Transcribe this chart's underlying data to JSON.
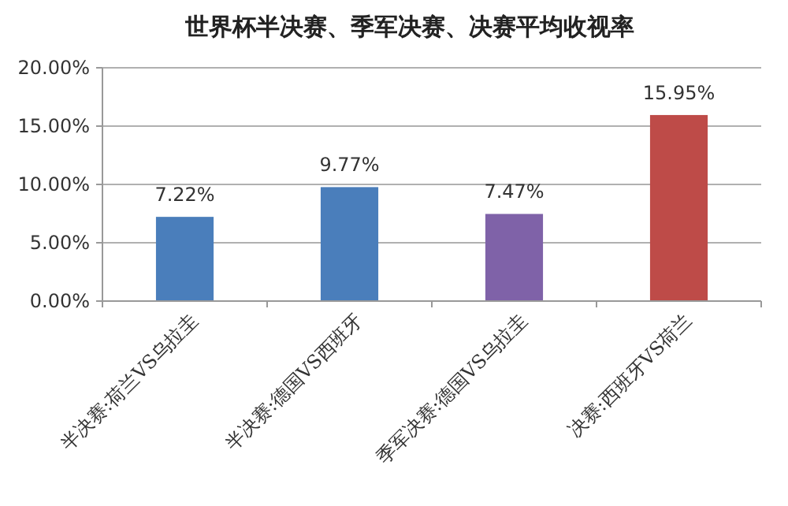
{
  "chart_data": {
    "type": "bar",
    "title": "世界杯半决赛、季军决赛、决赛平均收视率",
    "categories": [
      "半决赛:荷兰VS乌拉圭",
      "半决赛:德国VS西班牙",
      "季军决赛:德国VS乌拉圭",
      "决赛:西班牙VS荷兰"
    ],
    "values": [
      7.22,
      9.77,
      7.47,
      15.95
    ],
    "colors": [
      "#4a7ebb",
      "#4a7ebb",
      "#7f62a8",
      "#be4b48"
    ],
    "value_labels": [
      "7.22%",
      "9.77%",
      "7.47%",
      "15.95%"
    ],
    "ylim": [
      0,
      20
    ],
    "yticks": [
      {
        "value": 0,
        "label": "0.00%"
      },
      {
        "value": 5,
        "label": "5.00%"
      },
      {
        "value": 10,
        "label": "10.00%"
      },
      {
        "value": 15,
        "label": "15.00%"
      },
      {
        "value": 20,
        "label": "20.00%"
      }
    ],
    "grid": "y"
  }
}
